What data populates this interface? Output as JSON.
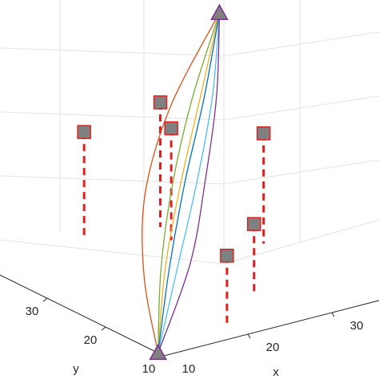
{
  "chart_data": {
    "type": "line3d",
    "x_label": "x",
    "y_label": "y",
    "xlim": [
      10,
      36
    ],
    "ylim": [
      10,
      40
    ],
    "zlim": [
      0,
      100
    ],
    "xticks": [
      10,
      20,
      30
    ],
    "yticks": [
      10,
      20,
      30
    ],
    "grid": true,
    "start": {
      "x": 10,
      "y": 11,
      "z": 0
    },
    "end": {
      "x": 18,
      "y": 12,
      "z": 100
    },
    "marker_color": "#808080",
    "marker_edge": "#7e2f8e",
    "obstacles": {
      "color": "#e02020",
      "fill": "#808080",
      "x": [
        14.4,
        20,
        21.3,
        32.3,
        26.3,
        18.9
      ],
      "y": [
        30,
        25,
        25,
        25,
        18,
        12
      ],
      "z": [
        49,
        59,
        50,
        41,
        23,
        23.5
      ],
      "zbase": [
        16.5,
        20,
        15,
        6.5,
        1.75,
        2.2
      ]
    },
    "series": [
      {
        "color": "#d95319",
        "x": [
          10,
          8.5,
          8.8,
          12,
          18
        ],
        "y": [
          11,
          11.25,
          11.5,
          11.75,
          12
        ],
        "z": [
          0,
          25,
          50,
          75,
          100
        ]
      },
      {
        "color": "#77ac30",
        "x": [
          10,
          10.5,
          12,
          14.5,
          18
        ],
        "y": [
          11,
          11.25,
          11.5,
          11.75,
          12
        ],
        "z": [
          0,
          25,
          50,
          75,
          100
        ]
      },
      {
        "color": "#edb120",
        "x": [
          10,
          11,
          13,
          15.5,
          18
        ],
        "y": [
          11,
          11.25,
          11.5,
          11.75,
          12
        ],
        "z": [
          0,
          25,
          50,
          75,
          100
        ]
      },
      {
        "color": "#0072bd",
        "x": [
          10,
          11.5,
          13.5,
          16,
          18
        ],
        "y": [
          11,
          11.25,
          11.5,
          11.75,
          12
        ],
        "z": [
          0,
          25,
          50,
          75,
          100
        ]
      },
      {
        "color": "#4dbeee",
        "x": [
          10,
          12.5,
          15,
          17,
          18
        ],
        "y": [
          11,
          11.25,
          11.5,
          11.75,
          12
        ],
        "z": [
          0,
          25,
          50,
          75,
          100
        ]
      },
      {
        "color": "#7e2f8e",
        "x": [
          10,
          14,
          16,
          17.5,
          18
        ],
        "y": [
          11,
          11.25,
          11.5,
          11.75,
          12
        ],
        "z": [
          0,
          25,
          50,
          75,
          100
        ]
      }
    ]
  }
}
